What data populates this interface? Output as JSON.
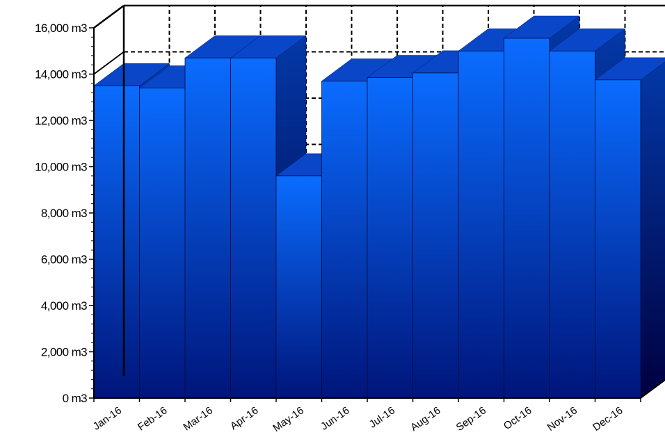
{
  "chart_data": {
    "type": "bar",
    "style": "3d",
    "title": "",
    "xlabel": "",
    "ylabel": "",
    "unit": "m3",
    "ylim": [
      0,
      16000
    ],
    "y_ticks": [
      0,
      2000,
      4000,
      6000,
      8000,
      10000,
      12000,
      14000,
      16000
    ],
    "y_tick_labels": [
      "0 m3",
      "2,000 m3",
      "4,000 m3",
      "6,000 m3",
      "8,000 m3",
      "10,000 m3",
      "12,000 m3",
      "14,000 m3",
      "16,000 m3"
    ],
    "grid": true,
    "grid_style": "dashed",
    "categories": [
      "Jan-16",
      "Feb-16",
      "Mar-16",
      "Apr-16",
      "May-16",
      "Jun-16",
      "Jul-16",
      "Aug-16",
      "Sep-16",
      "Oct-16",
      "Nov-16",
      "Dec-16"
    ],
    "values": [
      13500,
      13400,
      14700,
      14700,
      9600,
      13700,
      13850,
      14050,
      15000,
      15550,
      15000,
      13750
    ],
    "colors": {
      "bar_light": "#0a6cff",
      "bar_dark": "#00157a",
      "bar_top": "#0a46c8",
      "bar_side_light": "#0339a8",
      "bar_side_dark": "#000040"
    }
  }
}
